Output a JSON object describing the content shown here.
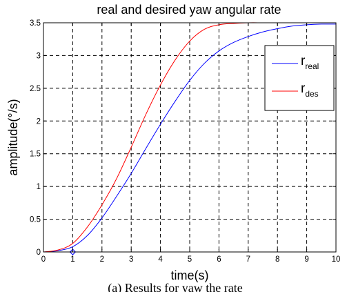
{
  "chart_data": {
    "type": "line",
    "title": "real and desired yaw angular rate",
    "xlabel": "time(s)",
    "ylabel": "amplitude(°/s)",
    "xlim": [
      0,
      10
    ],
    "ylim": [
      0,
      3.5
    ],
    "xticks": [
      "0",
      "1",
      "2",
      "3",
      "4",
      "5",
      "6",
      "7",
      "8",
      "9",
      "10"
    ],
    "yticks": [
      "0",
      "0.5",
      "1",
      "1.5",
      "2",
      "2.5",
      "3",
      "3.5"
    ],
    "grid": true,
    "legend_position": "top-right",
    "x": [
      0,
      0.5,
      1,
      1.5,
      2,
      2.5,
      3,
      3.5,
      4,
      4.5,
      5,
      5.5,
      6,
      6.5,
      7,
      7.5,
      8,
      8.5,
      9,
      9.5,
      10
    ],
    "series": [
      {
        "name_main": "r",
        "name_sub": "real",
        "color": "#0000ff",
        "values": [
          0,
          0.02,
          0.08,
          0.25,
          0.52,
          0.85,
          1.2,
          1.58,
          1.95,
          2.3,
          2.62,
          2.88,
          3.07,
          3.2,
          3.29,
          3.36,
          3.41,
          3.45,
          3.47,
          3.48,
          3.48
        ]
      },
      {
        "name_main": "r",
        "name_sub": "des",
        "color": "#ff0000",
        "values": [
          0,
          0.03,
          0.13,
          0.38,
          0.72,
          1.12,
          1.6,
          2.1,
          2.55,
          2.93,
          3.22,
          3.4,
          3.47,
          3.49,
          3.5,
          3.5,
          3.5,
          3.5,
          3.5,
          3.5,
          3.5
        ]
      }
    ],
    "marker": {
      "x": 1,
      "y": 0,
      "color": "#0000ff"
    }
  },
  "caption": "(a) Results for yaw the rate"
}
